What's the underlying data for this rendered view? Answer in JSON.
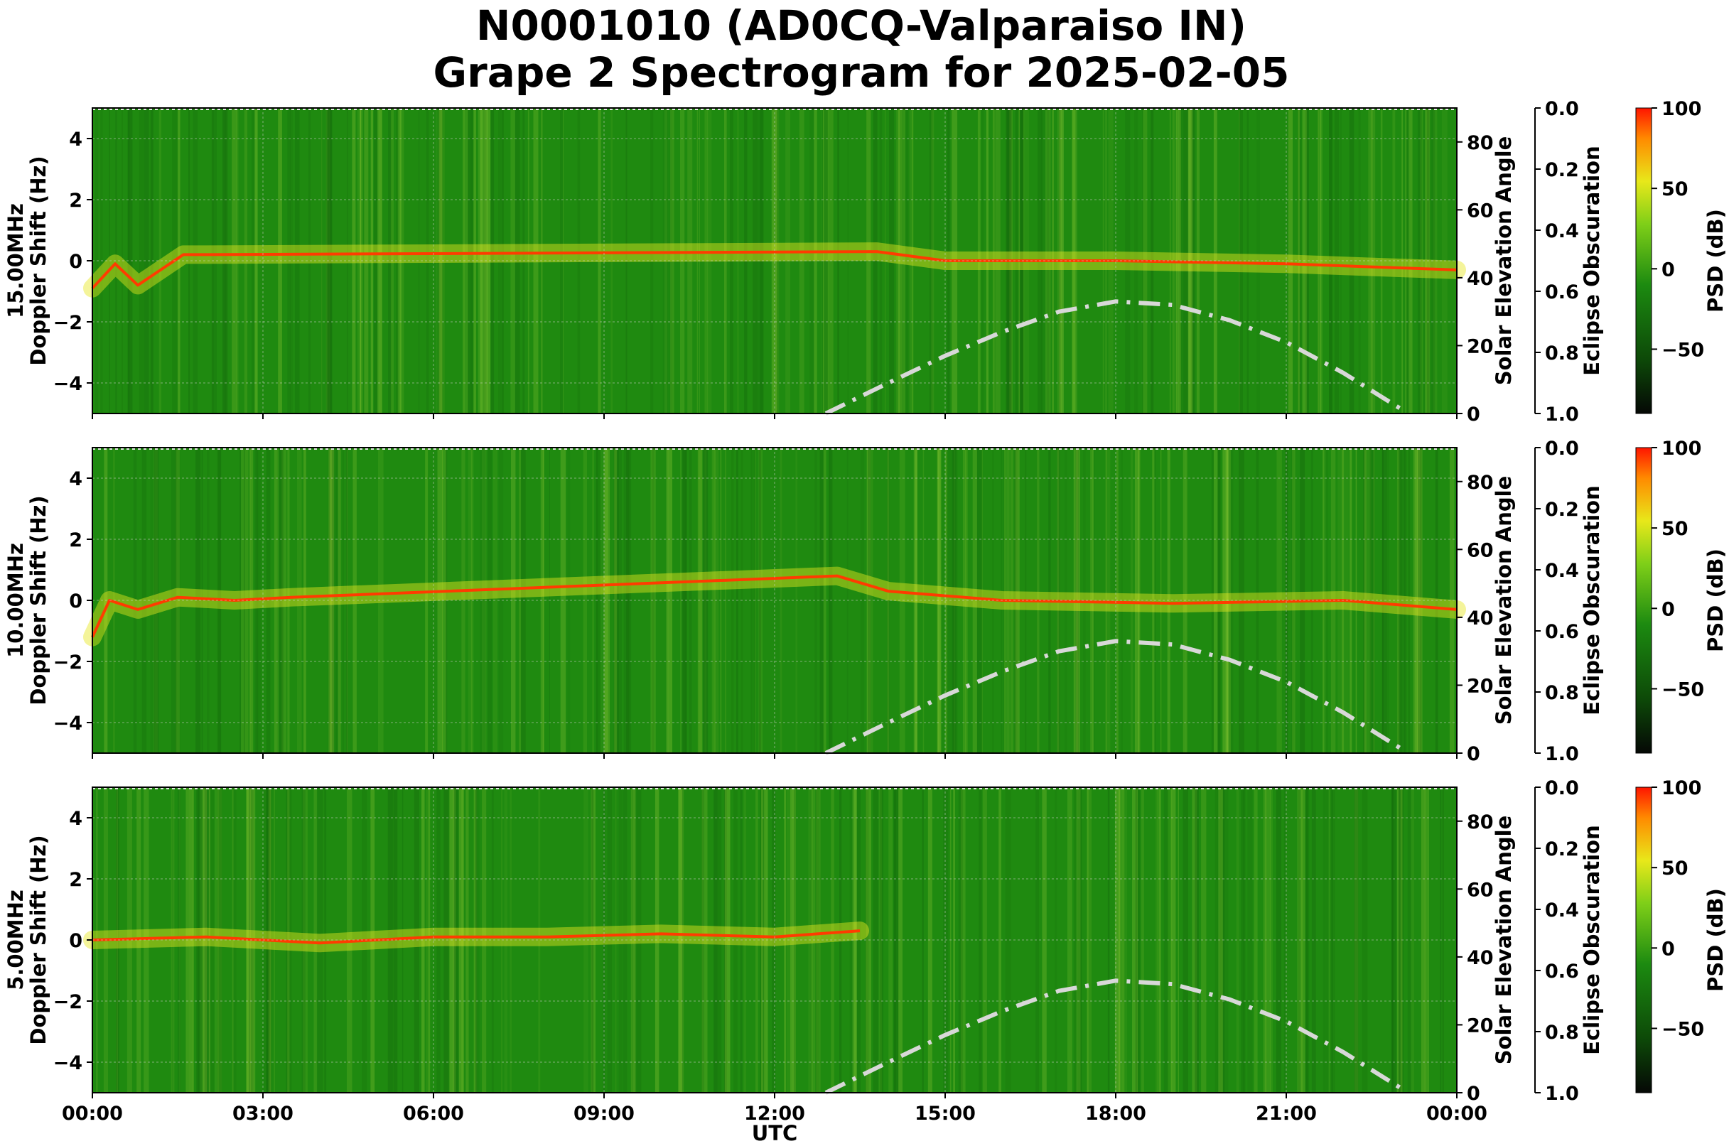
{
  "title_line1": "N0001010 (AD0CQ-Valparaiso IN)",
  "title_line2": "Grape 2 Spectrogram for 2025-02-05",
  "xlabel": "UTC",
  "colors": {
    "background_green": "#1f8a10",
    "trace_red": "#ff3b00",
    "spread_yellow": "#e6e620",
    "solar_curve": "#d8d8d8"
  },
  "chart_data": [
    {
      "type": "heatmap",
      "frequency_label": "15.00MHz",
      "ylabel": "Doppler Shift (Hz)",
      "ylabel_right": "Solar Elevation Angle",
      "eclipse_label": "Eclipse Obscuration",
      "colorbar_label": "PSD (dB)",
      "xlim_hours": [
        0,
        24
      ],
      "x_ticks": [
        "00:00",
        "03:00",
        "06:00",
        "09:00",
        "12:00",
        "15:00",
        "18:00",
        "21:00",
        "00:00"
      ],
      "ylim": [
        -5,
        5
      ],
      "y_ticks": [
        "−4",
        "−2",
        "0",
        "2",
        "4"
      ],
      "solar_ticks": [
        "0",
        "20",
        "40",
        "60",
        "80"
      ],
      "solar_ylim": [
        0,
        90
      ],
      "eclipse_ticks": [
        "0.0",
        "0.2",
        "0.4",
        "0.6",
        "0.8",
        "1.0"
      ],
      "colorbar_ticks": [
        "100",
        "50",
        "0",
        "−50"
      ],
      "colorbar_range": [
        -90,
        100
      ],
      "grid": true,
      "solar_elevation": {
        "x": [
          12.9,
          14,
          15,
          16,
          17,
          18,
          19,
          20,
          21,
          22,
          23,
          23.1
        ],
        "y": [
          0,
          9,
          17,
          24,
          30,
          33,
          32,
          27.5,
          21,
          12,
          1.5,
          0
        ]
      },
      "carrier_trace": {
        "x": [
          0,
          0.4,
          0.8,
          1.2,
          1.6,
          2.0,
          13.8,
          15,
          18,
          21,
          24
        ],
        "y": [
          -0.9,
          -0.1,
          -0.8,
          -0.3,
          0.2,
          0.2,
          0.3,
          0.0,
          0.0,
          -0.1,
          -0.3
        ]
      }
    },
    {
      "type": "heatmap",
      "frequency_label": "10.00MHz",
      "ylabel": "Doppler Shift (Hz)",
      "ylabel_right": "Solar Elevation Angle",
      "eclipse_label": "Eclipse Obscuration",
      "colorbar_label": "PSD (dB)",
      "xlim_hours": [
        0,
        24
      ],
      "x_ticks": [
        "00:00",
        "03:00",
        "06:00",
        "09:00",
        "12:00",
        "15:00",
        "18:00",
        "21:00",
        "00:00"
      ],
      "ylim": [
        -5,
        5
      ],
      "y_ticks": [
        "−4",
        "−2",
        "0",
        "2",
        "4"
      ],
      "solar_ticks": [
        "0",
        "20",
        "40",
        "60",
        "80"
      ],
      "solar_ylim": [
        0,
        90
      ],
      "eclipse_ticks": [
        "0.0",
        "0.2",
        "0.4",
        "0.6",
        "0.8",
        "1.0"
      ],
      "colorbar_ticks": [
        "100",
        "50",
        "0",
        "−50"
      ],
      "colorbar_range": [
        -90,
        100
      ],
      "grid": true,
      "solar_elevation": {
        "x": [
          12.9,
          14,
          15,
          16,
          17,
          18,
          19,
          20,
          21,
          22,
          23,
          23.1
        ],
        "y": [
          0,
          9,
          17,
          24,
          30,
          33,
          32,
          27.5,
          21,
          12,
          1.5,
          0
        ]
      },
      "carrier_trace": {
        "x": [
          0,
          0.3,
          0.8,
          1.5,
          2.5,
          3.5,
          13.1,
          14,
          16,
          19,
          22,
          24
        ],
        "y": [
          -1.2,
          0.0,
          -0.3,
          0.1,
          0.0,
          0.1,
          0.8,
          0.3,
          0.0,
          -0.1,
          0.0,
          -0.3
        ]
      }
    },
    {
      "type": "heatmap",
      "frequency_label": "5.00MHz",
      "ylabel": "Doppler Shift (Hz)",
      "ylabel_right": "Solar Elevation Angle",
      "eclipse_label": "Eclipse Obscuration",
      "colorbar_label": "PSD (dB)",
      "xlim_hours": [
        0,
        24
      ],
      "x_ticks": [
        "00:00",
        "03:00",
        "06:00",
        "09:00",
        "12:00",
        "15:00",
        "18:00",
        "21:00",
        "00:00"
      ],
      "ylim": [
        -5,
        5
      ],
      "y_ticks": [
        "−4",
        "−2",
        "0",
        "2",
        "4"
      ],
      "solar_ticks": [
        "0",
        "20",
        "40",
        "60",
        "80"
      ],
      "solar_ylim": [
        0,
        90
      ],
      "eclipse_ticks": [
        "0.0",
        "0.2",
        "0.4",
        "0.6",
        "0.8",
        "1.0"
      ],
      "colorbar_ticks": [
        "100",
        "50",
        "0",
        "−50"
      ],
      "colorbar_range": [
        -90,
        100
      ],
      "grid": true,
      "solar_elevation": {
        "x": [
          12.9,
          14,
          15,
          16,
          17,
          18,
          19,
          20,
          21,
          22,
          23,
          23.1
        ],
        "y": [
          0,
          9,
          17,
          24,
          30,
          33,
          32,
          27.5,
          21,
          12,
          1.5,
          0
        ]
      },
      "carrier_trace": {
        "x": [
          0,
          2,
          4,
          6,
          8,
          10,
          12,
          13.5
        ],
        "y": [
          0.0,
          0.1,
          -0.1,
          0.1,
          0.1,
          0.2,
          0.1,
          0.3
        ]
      }
    }
  ]
}
